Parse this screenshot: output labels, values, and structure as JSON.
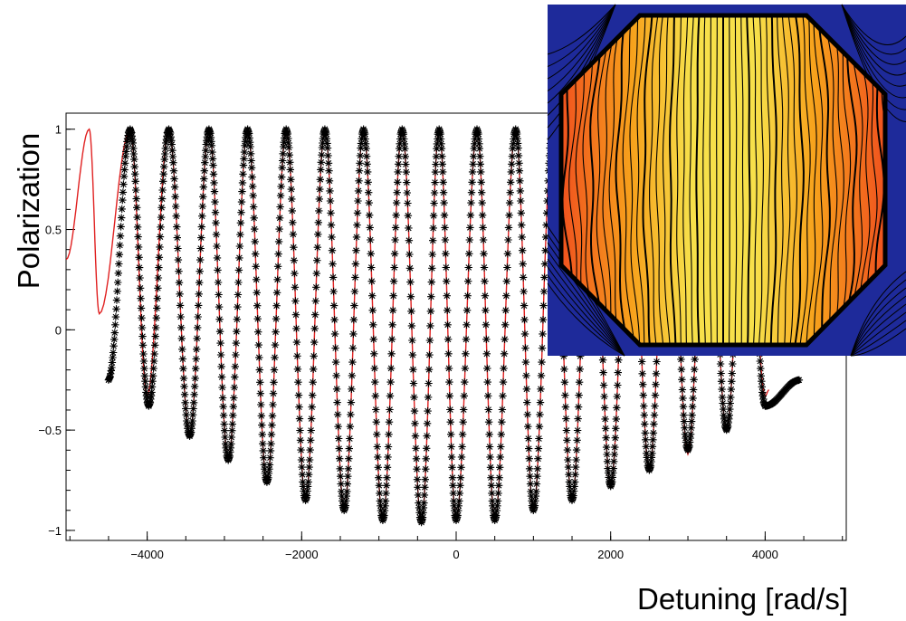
{
  "chart_data": {
    "type": "scatter",
    "xlabel": "Detuning [rad/s]",
    "ylabel": "Polarization",
    "xlim": [
      -5050,
      5050
    ],
    "ylim": [
      -1.05,
      1.08
    ],
    "x_ticks": [
      -4000,
      -2000,
      0,
      2000,
      4000
    ],
    "x_tick_labels": [
      "−4000",
      "−2000",
      "0",
      "2000",
      "4000"
    ],
    "y_ticks": [
      -1,
      -0.5,
      0,
      0.5,
      1
    ],
    "y_tick_labels": [
      "−1",
      "−0.5",
      "0",
      "0.5",
      "1"
    ],
    "grid": false,
    "marker_color": "#000000",
    "fit_color": "#e02020",
    "series": [
      {
        "kind": "measured",
        "marker": "asterisk",
        "x_range": [
          -4600,
          4450
        ],
        "peak_x": [
          -4220,
          -3720,
          -3200,
          -2700,
          -2200,
          -1700,
          -1200,
          -700,
          -220,
          270,
          770,
          1250,
          1750,
          2250,
          2750,
          3250,
          3750
        ],
        "trough_x": [
          -4500,
          -3980,
          -3450,
          -2950,
          -2450,
          -1950,
          -1450,
          -950,
          -450,
          0,
          500,
          1000,
          1500,
          2000,
          2500,
          3000,
          3500,
          4000,
          4450
        ],
        "trough_y": [
          -0.25,
          -0.38,
          -0.53,
          -0.65,
          -0.76,
          -0.85,
          -0.9,
          -0.95,
          -0.96,
          -0.95,
          -0.95,
          -0.9,
          -0.85,
          -0.78,
          -0.7,
          -0.6,
          -0.5,
          -0.38,
          -0.25
        ]
      },
      {
        "kind": "fit",
        "x_range": [
          -5050,
          4050
        ],
        "peak_x": [
          -4750,
          -4220,
          -3720,
          -3200,
          -2700,
          -2200,
          -1700,
          -1200,
          -700,
          -220,
          270,
          770,
          1250,
          1750,
          2250,
          2750,
          3250,
          3750
        ],
        "trough_x": [
          -5050,
          -4620,
          -4000,
          -3450,
          -2950,
          -2450,
          -1950,
          -1450,
          -950,
          -450,
          0,
          500,
          1000,
          1500,
          2000,
          2500,
          3000,
          3500,
          4000,
          4050
        ],
        "trough_y": [
          0.35,
          0.08,
          -0.33,
          -0.52,
          -0.65,
          -0.76,
          -0.84,
          -0.9,
          -0.95,
          -0.96,
          -0.95,
          -0.95,
          -0.9,
          -0.85,
          -0.78,
          -0.7,
          -0.62,
          -0.5,
          -0.33,
          -0.3
        ]
      }
    ]
  },
  "inset": {
    "background_color": "#1e2a9a",
    "gradient_colors": [
      "#f0521e",
      "#f7a21c",
      "#f7e04a"
    ],
    "outline_color": "#000000"
  }
}
